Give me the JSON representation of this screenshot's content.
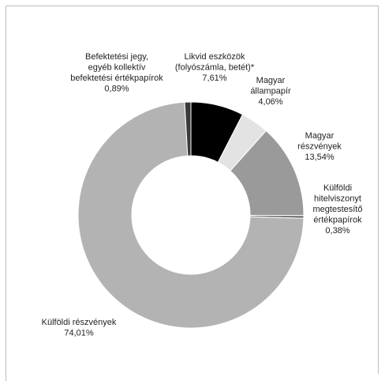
{
  "chart_data": {
    "type": "pie",
    "donut": true,
    "title": "",
    "series": [
      {
        "categories": [
          [
            "Likvid eszközök",
            "(folyószámla, betét)*"
          ],
          [
            "Magyar",
            "állampapír"
          ],
          [
            "Magyar",
            "részvények"
          ],
          [
            "Külföldi",
            "hitelviszonyt",
            "megtestesítő",
            "értékpapírok"
          ],
          [
            "Külföldi részvények"
          ],
          [
            "Befektetési jegy,",
            "egyéb kollektív",
            "befektetési értékpapírok"
          ]
        ],
        "value_labels": [
          "7,61%",
          "4,06%",
          "13,54%",
          "0,38%",
          "74,01%",
          "0,89%"
        ],
        "values": [
          7.61,
          4.06,
          13.54,
          0.38,
          74.01,
          0.89
        ],
        "colors": [
          "#000000",
          "#e3e3e3",
          "#9a9a9a",
          "#6e6e6e",
          "#b3b3b3",
          "#3a3a3a"
        ]
      }
    ],
    "start_angle_deg": 0,
    "direction": "clockwise",
    "legend": "none"
  }
}
